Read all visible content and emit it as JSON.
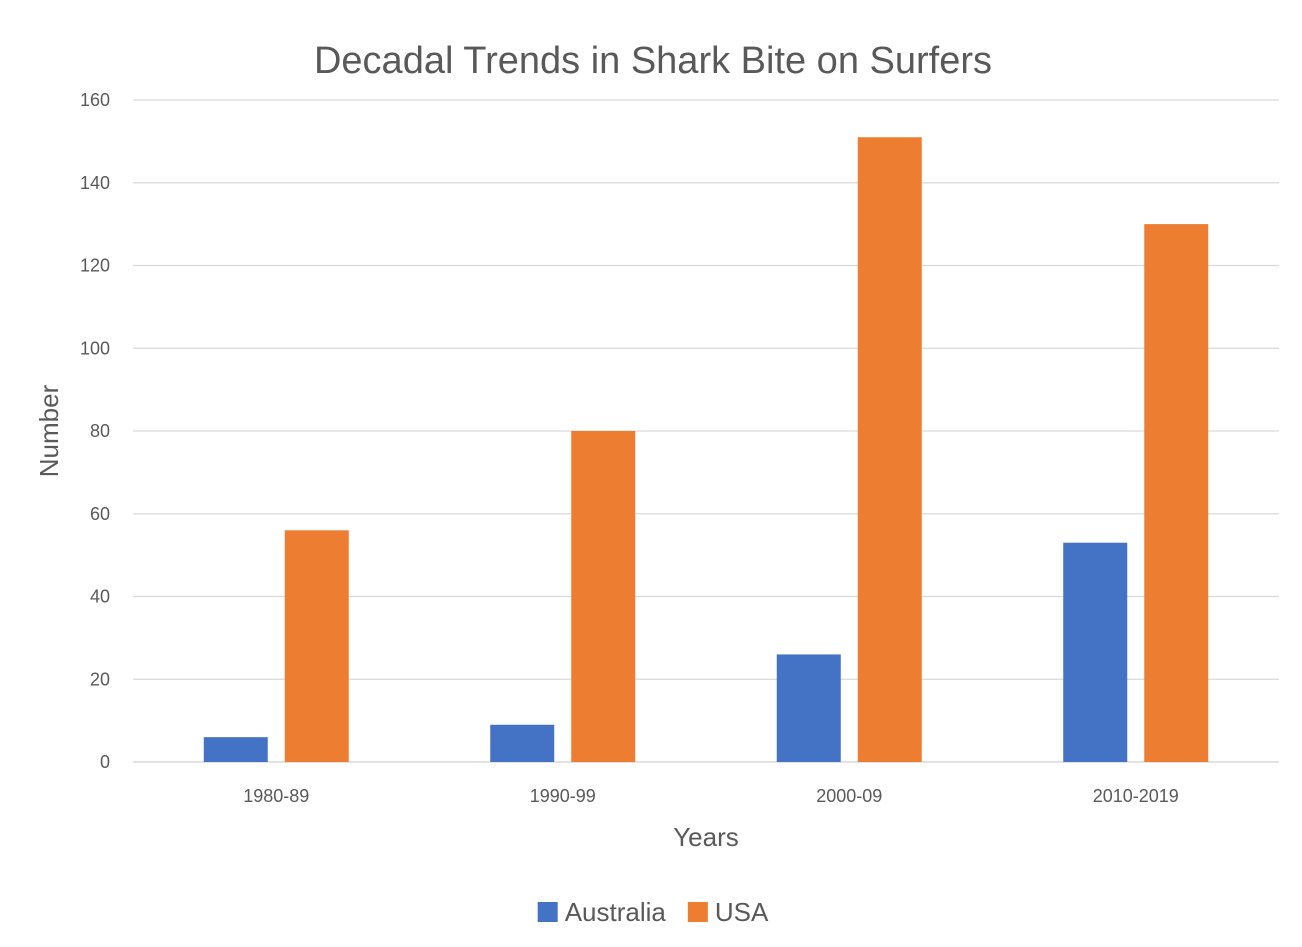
{
  "chart_data": {
    "type": "bar",
    "title": "Decadal Trends in Shark Bite on Surfers",
    "xlabel": "Years",
    "ylabel": "Number",
    "categories": [
      "1980-89",
      "1990-99",
      "2000-09",
      "2010-2019"
    ],
    "series": [
      {
        "name": "Australia",
        "color": "#4472C4",
        "values": [
          6,
          9,
          26,
          53
        ]
      },
      {
        "name": "USA",
        "color": "#ED7D31",
        "values": [
          56,
          80,
          151,
          130
        ]
      }
    ],
    "ylim": [
      0,
      160
    ],
    "yticks": [
      0,
      20,
      40,
      60,
      80,
      100,
      120,
      140,
      160
    ],
    "grid": true,
    "legend_position": "bottom"
  }
}
